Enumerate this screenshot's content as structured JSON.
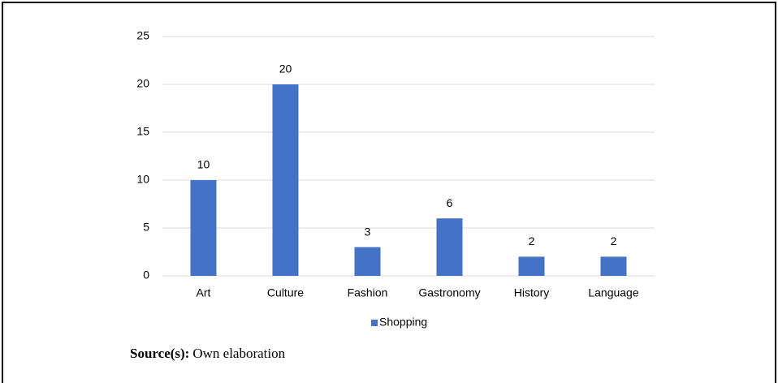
{
  "chart_data": {
    "type": "bar",
    "categories": [
      "Art",
      "Culture",
      "Fashion",
      "Gastronomy",
      "History",
      "Language"
    ],
    "series": [
      {
        "name": "Shopping",
        "color": "#4472c4",
        "values": [
          10,
          20,
          3,
          6,
          2,
          2
        ]
      }
    ],
    "ylim": [
      0,
      25
    ],
    "yticks": [
      0,
      5,
      10,
      15,
      20,
      25
    ],
    "grid": true,
    "legend": "bottom",
    "source_label": "Source(s):",
    "source_text": "Own elaboration"
  }
}
